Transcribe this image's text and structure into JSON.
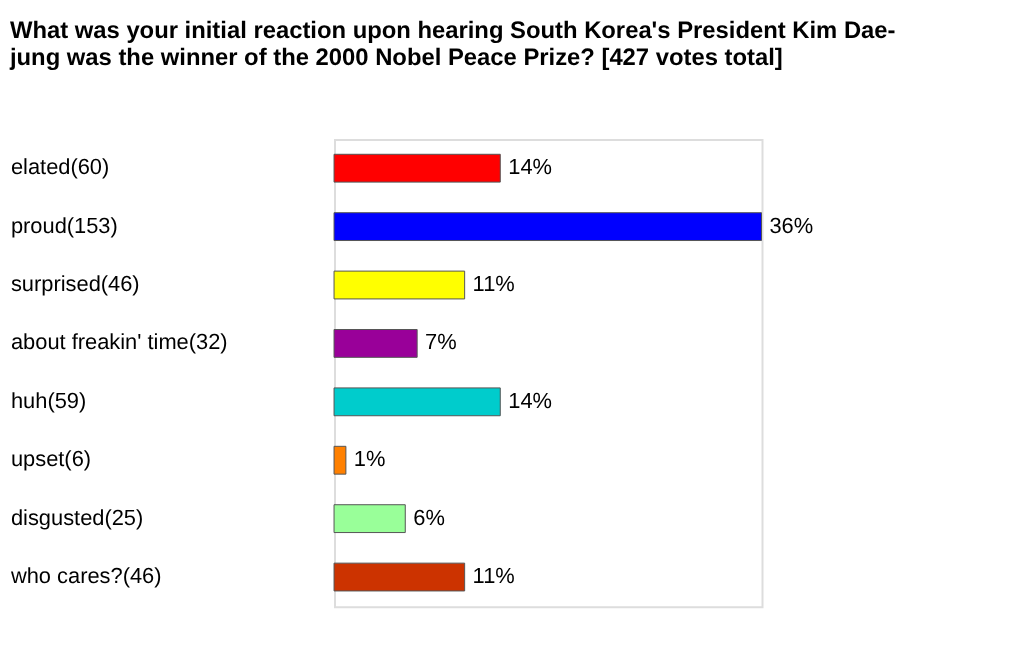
{
  "chart_data": {
    "type": "bar",
    "orientation": "horizontal",
    "title": "What was your initial reaction upon hearing South Korea's President Kim Dae-jung was the winner of the 2000 Nobel Peace Prize? [427 votes total]",
    "categories": [
      "elated(60)",
      "proud(153)",
      "surprised(46)",
      "about freakin' time(32)",
      "huh(59)",
      "upset(6)",
      "disgusted(25)",
      "who cares?(46)"
    ],
    "values": [
      14,
      36,
      11,
      7,
      14,
      1,
      6,
      11
    ],
    "value_labels": [
      "14%",
      "36%",
      "11%",
      "7%",
      "14%",
      "1%",
      "6%",
      "11%"
    ],
    "colors": [
      "#ff0000",
      "#0000ff",
      "#ffff00",
      "#990099",
      "#00cccc",
      "#ff8000",
      "#99ff99",
      "#cc3300"
    ],
    "grid": false
  }
}
